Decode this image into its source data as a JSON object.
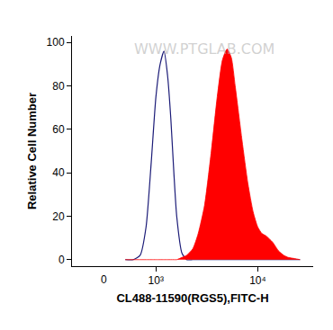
{
  "chart_data": {
    "type": "line",
    "x_label": "CL488-11590(RGS5),FITC-H",
    "y_label": "Relative Cell Number",
    "annotations": [
      "WWW.PTGLAB.COM",
      "0"
    ],
    "log": "x",
    "x": [
      500,
      600,
      700,
      800,
      900,
      1000,
      1100,
      1200,
      1300,
      1400,
      1500,
      1600,
      1800,
      2000,
      2300,
      2600,
      3000,
      3500,
      4000,
      4500,
      5000,
      5500,
      6000,
      7000,
      8000,
      9000,
      10000,
      11000,
      12000,
      14000,
      16000,
      18000,
      20000,
      23000,
      26000
    ],
    "series": [
      {
        "type": "line",
        "color": "#1c1c78",
        "values": [
          0,
          0,
          2,
          15,
          45,
          75,
          90,
          96,
          85,
          65,
          40,
          20,
          3,
          0,
          0,
          0,
          0,
          0,
          0,
          0,
          0,
          0,
          0,
          0,
          0,
          0,
          0,
          0,
          0,
          0,
          0,
          0,
          0,
          0,
          0
        ]
      },
      {
        "type": "area",
        "color": "#ff0000",
        "values": [
          0,
          0,
          0,
          0,
          0,
          0,
          0,
          0,
          0,
          0,
          0,
          0,
          1,
          2,
          5,
          12,
          25,
          50,
          75,
          92,
          97,
          93,
          80,
          55,
          35,
          22,
          15,
          12,
          11,
          8,
          4,
          2,
          1,
          0.5,
          0
        ]
      }
    ],
    "xlim": [
      150,
      35000
    ],
    "xticks": [
      {
        "value": 1000,
        "label": "10³"
      },
      {
        "value": 10000,
        "label": "10⁴"
      }
    ],
    "ylim": [
      -3,
      103
    ],
    "yticks": [
      0,
      20,
      40,
      60,
      80,
      100
    ],
    "grid": false
  }
}
